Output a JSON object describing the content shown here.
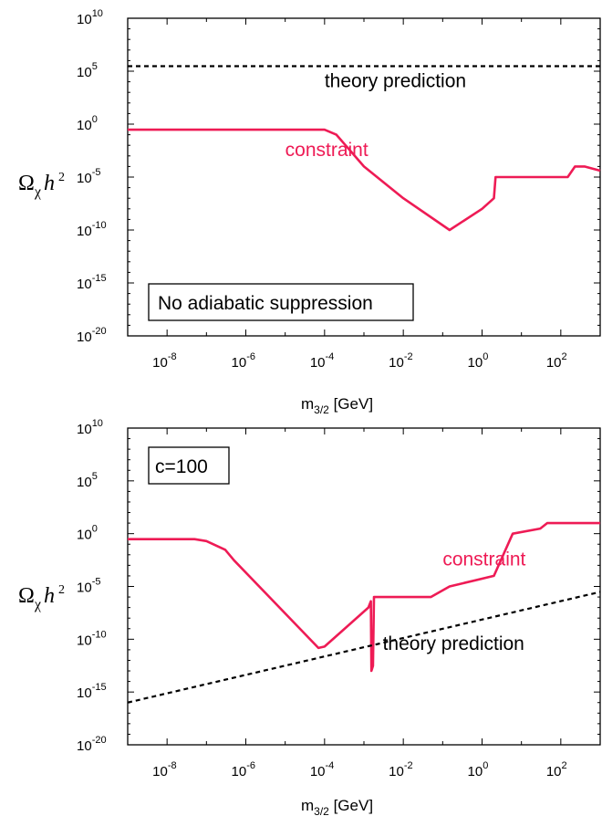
{
  "colors": {
    "constraint": "#ee1b55",
    "theory": "#000000",
    "axis": "#000000"
  },
  "chart_data": [
    {
      "type": "line",
      "x_scale": "log10",
      "y_scale": "log10",
      "xlabel": "m3/2 [GeV]",
      "xlabel_main": "m",
      "xlabel_sub": "3/2",
      "xlabel_unit": " [GeV]",
      "ylabel": "Ωχ h2",
      "ylabel_main": "Ω",
      "ylabel_sub": "χ",
      "ylabel_h": "h",
      "ylabel_sup": "2",
      "xlim": [
        1e-09,
        1000
      ],
      "ylim": [
        1e-20,
        10000000000.0
      ],
      "x_ticks": [
        {
          "base": "10",
          "exp": "-8"
        },
        {
          "base": "10",
          "exp": "-6"
        },
        {
          "base": "10",
          "exp": "-4"
        },
        {
          "base": "10",
          "exp": "-2"
        },
        {
          "base": "10",
          "exp": "0"
        },
        {
          "base": "10",
          "exp": "2"
        }
      ],
      "y_ticks": [
        {
          "base": "10",
          "exp": "10"
        },
        {
          "base": "10",
          "exp": "5"
        },
        {
          "base": "10",
          "exp": "0"
        },
        {
          "base": "10",
          "exp": "-5"
        },
        {
          "base": "10",
          "exp": "-10"
        },
        {
          "base": "10",
          "exp": "-15"
        },
        {
          "base": "10",
          "exp": "-20"
        }
      ],
      "box_label": "No adiabatic suppression",
      "box_position": "bottom-left",
      "series": [
        {
          "name": "constraint",
          "color": "#ee1b55",
          "style": "solid",
          "points": [
            [
              1e-09,
              0.3
            ],
            [
              1e-06,
              0.3
            ],
            [
              3e-05,
              0.3
            ],
            [
              0.0001,
              0.3
            ],
            [
              0.0002,
              0.1
            ],
            [
              0.001,
              0.0001
            ],
            [
              0.01,
              1e-07
            ],
            [
              0.15,
              1e-10
            ],
            [
              1,
              1e-08
            ],
            [
              2.0,
              1e-07
            ],
            [
              2.2,
              1e-05
            ],
            [
              10,
              1e-05
            ],
            [
              150,
              1e-05
            ],
            [
              230,
              0.0001
            ],
            [
              400,
              0.0001
            ],
            [
              1000,
              4e-05
            ]
          ]
        },
        {
          "name": "theory prediction",
          "color": "#000000",
          "style": "dashed",
          "points": [
            [
              1e-09,
              300000.0
            ],
            [
              1000,
              300000.0
            ]
          ]
        }
      ],
      "annotations": [
        {
          "text": "theory prediction",
          "x": 0.0001,
          "y": 3000.0,
          "color": "#000000"
        },
        {
          "text": "constraint",
          "x": 1e-05,
          "y": 0.001,
          "color": "#ee1b55"
        }
      ]
    },
    {
      "type": "line",
      "x_scale": "log10",
      "y_scale": "log10",
      "xlabel": "m3/2 [GeV]",
      "xlabel_main": "m",
      "xlabel_sub": "3/2",
      "xlabel_unit": " [GeV]",
      "ylabel": "Ωχ h2",
      "ylabel_main": "Ω",
      "ylabel_sub": "χ",
      "ylabel_h": "h",
      "ylabel_sup": "2",
      "xlim": [
        1e-09,
        1000
      ],
      "ylim": [
        1e-20,
        10000000000.0
      ],
      "x_ticks": [
        {
          "base": "10",
          "exp": "-8"
        },
        {
          "base": "10",
          "exp": "-6"
        },
        {
          "base": "10",
          "exp": "-4"
        },
        {
          "base": "10",
          "exp": "-2"
        },
        {
          "base": "10",
          "exp": "0"
        },
        {
          "base": "10",
          "exp": "2"
        }
      ],
      "y_ticks": [
        {
          "base": "10",
          "exp": "10"
        },
        {
          "base": "10",
          "exp": "5"
        },
        {
          "base": "10",
          "exp": "0"
        },
        {
          "base": "10",
          "exp": "-5"
        },
        {
          "base": "10",
          "exp": "-10"
        },
        {
          "base": "10",
          "exp": "-15"
        },
        {
          "base": "10",
          "exp": "-20"
        }
      ],
      "box_label": "c=100",
      "box_position": "top-left",
      "series": [
        {
          "name": "constraint",
          "color": "#ee1b55",
          "style": "solid",
          "points": [
            [
              1e-09,
              0.3
            ],
            [
              5e-08,
              0.3
            ],
            [
              1e-07,
              0.2
            ],
            [
              3e-07,
              0.03
            ],
            [
              5e-07,
              0.003
            ],
            [
              7e-05,
              1.5e-11
            ],
            [
              0.0001,
              2e-11
            ],
            [
              0.0013,
              1e-07
            ],
            [
              0.0015,
              4e-07
            ],
            [
              0.00155,
              1e-13
            ],
            [
              0.0017,
              3e-13
            ],
            [
              0.0018,
              1e-06
            ],
            [
              0.01,
              1e-06
            ],
            [
              0.03,
              1e-06
            ],
            [
              0.05,
              1e-06
            ],
            [
              0.15,
              1e-05
            ],
            [
              2,
              0.0001
            ],
            [
              6,
              1.0
            ],
            [
              30,
              3.0
            ],
            [
              45,
              10.0
            ],
            [
              1000,
              10.0
            ]
          ]
        },
        {
          "name": "theory prediction",
          "color": "#000000",
          "style": "dashed",
          "points": [
            [
              1e-09,
              1e-16
            ],
            [
              1000,
              3e-06
            ]
          ]
        }
      ],
      "annotations": [
        {
          "text": "constraint",
          "x": 0.1,
          "y": 0.001,
          "color": "#ee1b55"
        },
        {
          "text": "theory prediction",
          "x": 0.003,
          "y": 1e-11,
          "color": "#000000"
        }
      ]
    }
  ]
}
